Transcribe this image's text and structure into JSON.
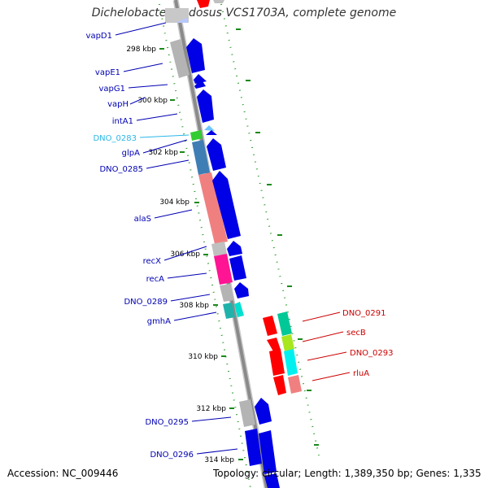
{
  "title": "Dichelobacter nodosus VCS1703A, complete genome",
  "accession": "Accession: NC_009446",
  "summary": "Topology: circular; Length: 1,389,350 bp; Genes: 1,335",
  "colors": {
    "forward_gene": "#0000e6",
    "reverse_gene": "#ff0000",
    "forward_label": "#0000b3",
    "reverse_label": "#cc0000",
    "highlight_label": "#2ab7e8",
    "backbone": "#808080",
    "tick": "#1a8a1a"
  },
  "kbp_ticks": [
    "298 kbp",
    "300 kbp",
    "302 kbp",
    "304 kbp",
    "306 kbp",
    "308 kbp",
    "310 kbp",
    "312 kbp",
    "314 kbp"
  ],
  "left_labels": [
    {
      "text": "vapD1",
      "color": "forward"
    },
    {
      "text": "vapE1",
      "color": "forward"
    },
    {
      "text": "vapG1",
      "color": "forward"
    },
    {
      "text": "vapH",
      "color": "forward"
    },
    {
      "text": "intA1",
      "color": "forward"
    },
    {
      "text": "DNO_0283",
      "color": "highlight"
    },
    {
      "text": "glpA",
      "color": "forward"
    },
    {
      "text": "DNO_0285",
      "color": "forward"
    },
    {
      "text": "alaS",
      "color": "forward"
    },
    {
      "text": "recX",
      "color": "forward"
    },
    {
      "text": "recA",
      "color": "forward"
    },
    {
      "text": "DNO_0289",
      "color": "forward"
    },
    {
      "text": "gmhA",
      "color": "forward"
    },
    {
      "text": "DNO_0295",
      "color": "forward"
    },
    {
      "text": "DNO_0296",
      "color": "forward"
    }
  ],
  "right_labels": [
    {
      "text": "DNO_0291",
      "color": "reverse"
    },
    {
      "text": "secB",
      "color": "reverse"
    },
    {
      "text": "DNO_0293",
      "color": "reverse"
    },
    {
      "text": "rluA",
      "color": "reverse"
    }
  ]
}
